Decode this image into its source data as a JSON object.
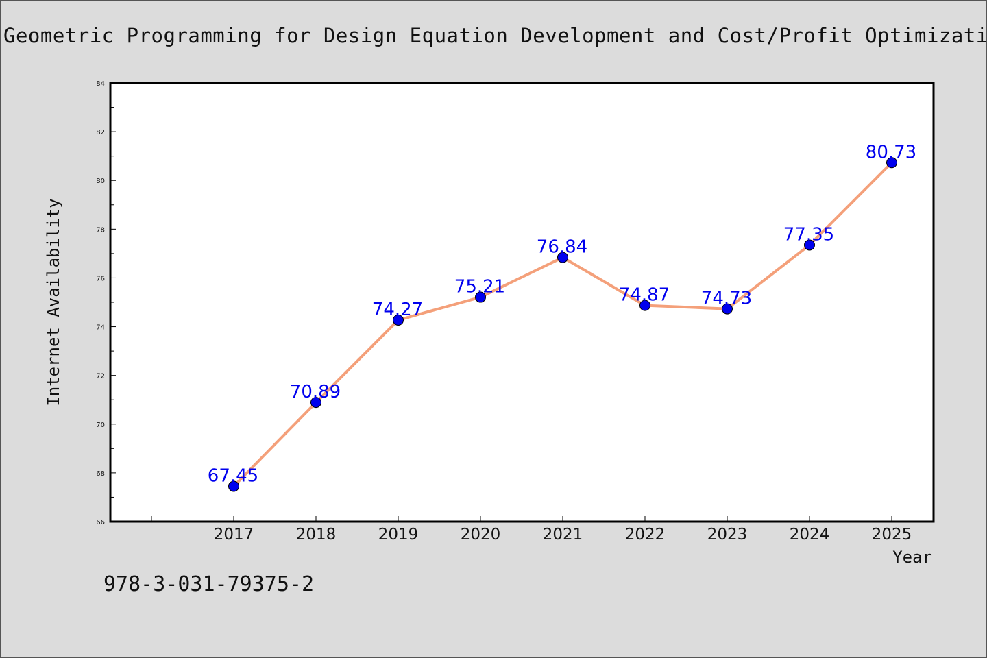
{
  "page": {
    "title": "Geometric Programming for Design Equation Development and Cost/Profit Optimization",
    "isbn": "978-3-031-79375-2"
  },
  "chart_data": {
    "type": "line",
    "x": [
      "2017",
      "2018",
      "2019",
      "2020",
      "2021",
      "2022",
      "2023",
      "2024",
      "2025"
    ],
    "values": [
      67.45,
      70.89,
      74.27,
      75.21,
      76.84,
      74.87,
      74.73,
      77.35,
      80.73
    ],
    "data_labels": [
      "67.45",
      "70.89",
      "74.27",
      "75.21",
      "76.84",
      "74.87",
      "74.73",
      "77.35",
      "80.73"
    ],
    "xlabel": "Year",
    "ylabel": "Internet Availability",
    "ylim": [
      66,
      84
    ],
    "yticks": [
      "66",
      "68",
      "70",
      "72",
      "74",
      "76",
      "78",
      "80",
      "82",
      "84"
    ],
    "grid": false,
    "colors": {
      "line": "#f4a07a",
      "marker": "#0000ee",
      "label": "#0000ee"
    }
  }
}
